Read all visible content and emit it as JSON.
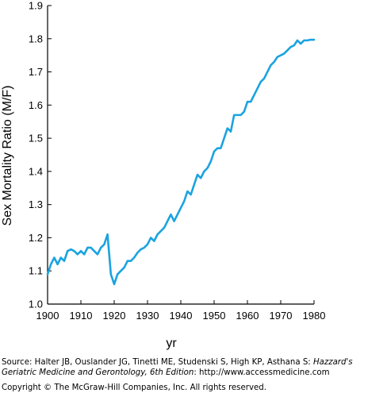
{
  "chart_data": {
    "type": "line",
    "title": "",
    "xlabel": "yr",
    "ylabel": "Sex Mortality Ratio (M/F)",
    "xlim": [
      1900,
      1980
    ],
    "ylim": [
      1.0,
      1.9
    ],
    "x_ticks": [
      "1900",
      "1910",
      "1920",
      "1930",
      "1940",
      "1950",
      "1960",
      "1970",
      "1980"
    ],
    "y_ticks": [
      "1.0",
      "1.1",
      "1.2",
      "1.3",
      "1.4",
      "1.5",
      "1.6",
      "1.7",
      "1.8",
      "1.9"
    ],
    "grid": false,
    "line_color": "#1aa3e0",
    "series": [
      {
        "x": [
          1900,
          1901,
          1902,
          1903,
          1904,
          1905,
          1906,
          1907,
          1908,
          1909,
          1910,
          1911,
          1912,
          1913,
          1914,
          1915,
          1916,
          1917,
          1918,
          1919,
          1920,
          1921,
          1922,
          1923,
          1924,
          1925,
          1926,
          1927,
          1928,
          1929,
          1930,
          1931,
          1932,
          1933,
          1934,
          1935,
          1936,
          1937,
          1938,
          1939,
          1940,
          1941,
          1942,
          1943,
          1944,
          1945,
          1946,
          1947,
          1948,
          1949,
          1950,
          1951,
          1952,
          1953,
          1954,
          1955,
          1956,
          1957,
          1958,
          1959,
          1960,
          1961,
          1962,
          1963,
          1964,
          1965,
          1966,
          1967,
          1968,
          1969,
          1970,
          1971,
          1972,
          1973,
          1974,
          1975,
          1976,
          1977,
          1978,
          1979,
          1980
        ],
        "y": [
          1.09,
          1.12,
          1.14,
          1.12,
          1.14,
          1.13,
          1.16,
          1.165,
          1.16,
          1.15,
          1.16,
          1.15,
          1.17,
          1.17,
          1.16,
          1.15,
          1.17,
          1.18,
          1.21,
          1.09,
          1.06,
          1.09,
          1.1,
          1.11,
          1.13,
          1.13,
          1.14,
          1.155,
          1.165,
          1.17,
          1.18,
          1.2,
          1.19,
          1.21,
          1.22,
          1.23,
          1.25,
          1.27,
          1.25,
          1.27,
          1.29,
          1.31,
          1.34,
          1.33,
          1.36,
          1.39,
          1.38,
          1.4,
          1.41,
          1.43,
          1.46,
          1.47,
          1.47,
          1.5,
          1.53,
          1.52,
          1.57,
          1.57,
          1.57,
          1.58,
          1.61,
          1.61,
          1.63,
          1.65,
          1.67,
          1.68,
          1.7,
          1.72,
          1.73,
          1.745,
          1.75,
          1.755,
          1.765,
          1.775,
          1.78,
          1.795,
          1.785,
          1.795,
          1.795,
          1.797,
          1.797
        ]
      }
    ]
  },
  "footer": {
    "source_prefix": "Source: Halter JB, Ouslander JG, Tinetti ME, Studenski S, High KP, Asthana S: ",
    "source_title_1": "Hazzard's",
    "source_title_2": "Geriatric Medicine and Gerontology, 6th Edition",
    "source_suffix": ": http://www.accessmedicine.com",
    "copyright": "Copyright © The McGraw-Hill Companies, Inc. All rights reserved."
  }
}
